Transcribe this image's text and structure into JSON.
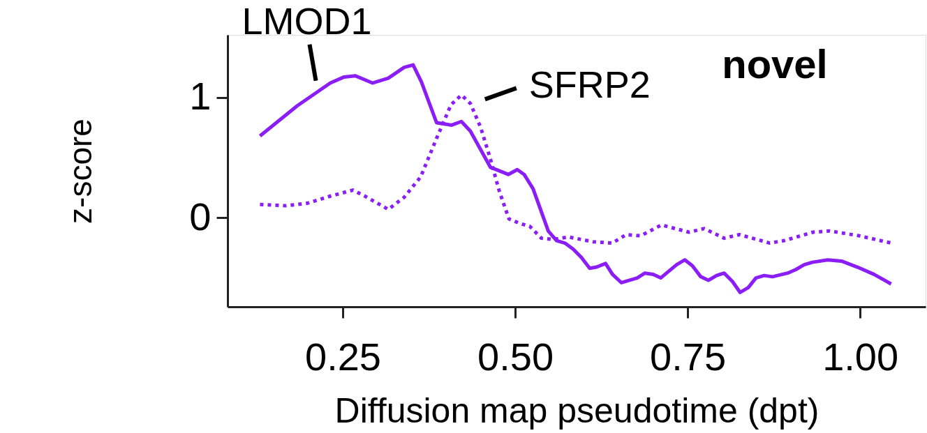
{
  "chart_data": {
    "type": "line",
    "xlabel": "Diffusion map pseudotime (dpt)",
    "ylabel": "z-score",
    "xlim": [
      0.083,
      1.095
    ],
    "ylim": [
      -0.74,
      1.52
    ],
    "xticks": [
      0.25,
      {
        "value": 0.5,
        "label": "0.50"
      },
      0.75,
      {
        "value": 1.0,
        "label": "1.00"
      }
    ],
    "yticks": [
      0,
      1
    ],
    "grid": false,
    "legend": false,
    "annotations": [
      {
        "text": "LMOD1",
        "x": 0.211,
        "y": 1.04
      },
      {
        "text": "SFRP2",
        "x": 0.44,
        "y": 0.88
      },
      "novel"
    ],
    "series": [
      {
        "color": "#8b1df6",
        "line_style": "solid",
        "x": [
          0.13,
          0.184,
          0.232,
          0.252,
          0.268,
          0.293,
          0.316,
          0.339,
          0.352,
          0.364,
          0.386,
          0.408,
          0.422,
          0.435,
          0.464,
          0.49,
          0.503,
          0.513,
          0.526,
          0.548,
          0.56,
          0.572,
          0.584,
          0.596,
          0.608,
          0.618,
          0.631,
          0.641,
          0.654,
          0.665,
          0.677,
          0.688,
          0.7,
          0.711,
          0.734,
          0.746,
          0.757,
          0.769,
          0.78,
          0.792,
          0.803,
          0.815,
          0.826,
          0.838,
          0.849,
          0.861,
          0.873,
          0.895,
          0.907,
          0.919,
          0.931,
          0.953,
          0.973,
          0.996,
          1.02,
          1.045
        ],
        "values": [
          0.68,
          0.93,
          1.12,
          1.17,
          1.18,
          1.12,
          1.16,
          1.25,
          1.27,
          1.13,
          0.79,
          0.77,
          0.8,
          0.72,
          0.42,
          0.36,
          0.4,
          0.36,
          0.24,
          -0.11,
          -0.19,
          -0.21,
          -0.26,
          -0.33,
          -0.42,
          -0.41,
          -0.38,
          -0.47,
          -0.54,
          -0.52,
          -0.5,
          -0.46,
          -0.47,
          -0.5,
          -0.39,
          -0.35,
          -0.4,
          -0.49,
          -0.52,
          -0.48,
          -0.46,
          -0.53,
          -0.62,
          -0.58,
          -0.5,
          -0.48,
          -0.49,
          -0.46,
          -0.43,
          -0.39,
          -0.37,
          -0.35,
          -0.36,
          -0.41,
          -0.47,
          -0.55
        ]
      },
      {
        "color": "#8b1df6",
        "line_style": "dotted",
        "x": [
          0.13,
          0.167,
          0.198,
          0.232,
          0.265,
          0.282,
          0.316,
          0.339,
          0.363,
          0.386,
          0.407,
          0.422,
          0.435,
          0.45,
          0.464,
          0.477,
          0.491,
          0.508,
          0.521,
          0.538,
          0.555,
          0.578,
          0.613,
          0.641,
          0.661,
          0.682,
          0.712,
          0.752,
          0.774,
          0.803,
          0.825,
          0.869,
          0.89,
          0.932,
          0.956,
          0.999,
          1.045
        ],
        "values": [
          0.11,
          0.1,
          0.12,
          0.18,
          0.23,
          0.18,
          0.07,
          0.17,
          0.34,
          0.66,
          0.94,
          1.02,
          0.95,
          0.75,
          0.49,
          0.22,
          -0.01,
          -0.05,
          -0.07,
          -0.17,
          -0.18,
          -0.16,
          -0.2,
          -0.21,
          -0.14,
          -0.15,
          -0.06,
          -0.12,
          -0.09,
          -0.17,
          -0.14,
          -0.21,
          -0.19,
          -0.12,
          -0.11,
          -0.15,
          -0.21
        ]
      }
    ]
  }
}
